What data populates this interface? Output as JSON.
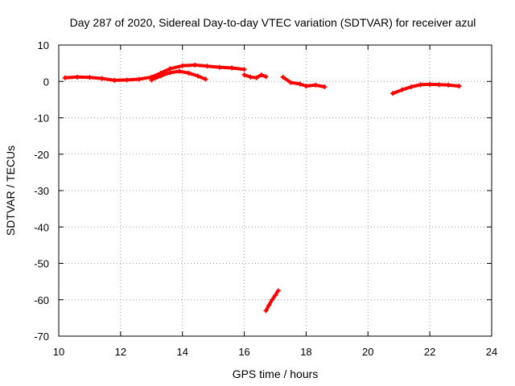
{
  "chart_data": {
    "type": "scatter",
    "title": "Day 287 of 2020, Sidereal Day-to-day VTEC variation (SDTVAR) for receiver azul",
    "xlabel": "GPS time / hours",
    "ylabel": "SDTVAR / TECUs",
    "xlim": [
      10,
      24
    ],
    "ylim": [
      -70,
      10
    ],
    "xticks": [
      10,
      12,
      14,
      16,
      18,
      20,
      22,
      24
    ],
    "yticks": [
      10,
      0,
      -10,
      -20,
      -30,
      -40,
      -50,
      -60,
      -70
    ],
    "grid": true,
    "legend": "none",
    "series_color": "#ff0000",
    "series": [
      {
        "name": "segment-1",
        "x": [
          10.2,
          10.6,
          11.0,
          11.4,
          11.8,
          12.2,
          12.6,
          13.0,
          13.3,
          13.6,
          14.0,
          14.4,
          14.8,
          15.2,
          15.6,
          16.0
        ],
        "y": [
          1.0,
          1.2,
          1.1,
          0.8,
          0.3,
          0.4,
          0.6,
          1.2,
          2.3,
          3.5,
          4.3,
          4.5,
          4.2,
          3.9,
          3.7,
          3.3
        ]
      },
      {
        "name": "segment-2",
        "x": [
          13.0,
          13.3,
          13.6,
          13.9,
          14.2,
          14.5,
          14.75
        ],
        "y": [
          0.4,
          1.5,
          2.4,
          2.8,
          2.3,
          1.5,
          0.6
        ]
      },
      {
        "name": "segment-3",
        "x": [
          16.0,
          16.2,
          16.4,
          16.55,
          16.7
        ],
        "y": [
          1.8,
          1.2,
          1.0,
          1.8,
          1.3
        ]
      },
      {
        "name": "segment-4",
        "x": [
          16.7,
          16.8,
          16.9,
          17.0,
          17.1
        ],
        "y": [
          -63.0,
          -61.5,
          -60.0,
          -58.8,
          -57.5
        ]
      },
      {
        "name": "segment-5",
        "x": [
          17.25,
          17.5,
          17.8,
          18.0,
          18.3,
          18.6
        ],
        "y": [
          1.2,
          -0.3,
          -0.7,
          -1.3,
          -1.0,
          -1.5
        ]
      },
      {
        "name": "segment-6",
        "x": [
          20.8,
          21.1,
          21.4,
          21.7,
          22.0,
          22.3,
          22.6,
          22.95
        ],
        "y": [
          -3.3,
          -2.3,
          -1.5,
          -0.9,
          -0.8,
          -0.9,
          -1.0,
          -1.3
        ]
      }
    ]
  }
}
